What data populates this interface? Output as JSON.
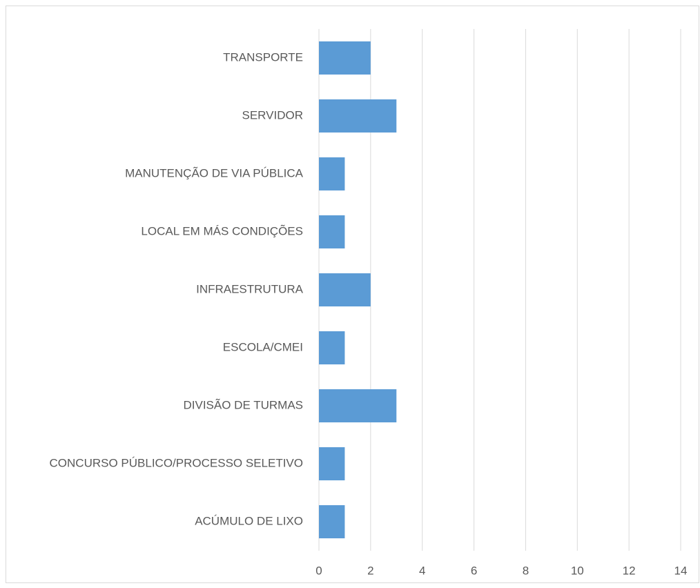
{
  "chart_data": {
    "type": "hbar",
    "categories": [
      "TRANSPORTE",
      "SERVIDOR",
      "MANUTENÇÃO DE VIA PÚBLICA",
      "LOCAL EM MÁS CONDIÇÕES",
      "INFRAESTRUTURA",
      "ESCOLA/CMEI",
      "DIVISÃO DE TURMAS",
      "CONCURSO PÚBLICO/PROCESSO SELETIVO",
      "ACÚMULO DE LIXO"
    ],
    "values": [
      2,
      3,
      1,
      1,
      2,
      1,
      3,
      1,
      1
    ],
    "color": "#5b9bd5",
    "xlim": [
      0,
      14
    ],
    "xticks": [
      0,
      2,
      4,
      6,
      8,
      10,
      12,
      14
    ],
    "grid": true
  }
}
